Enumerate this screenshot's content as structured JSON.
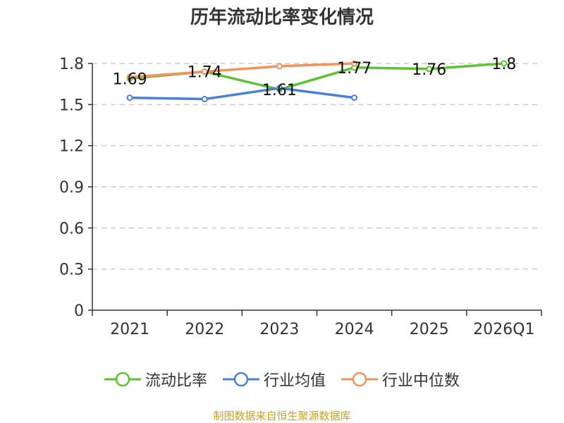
{
  "chart_data": {
    "type": "line",
    "title": "历年流动比率变化情况",
    "categories": [
      "2021",
      "2022",
      "2023",
      "2024",
      "2025",
      "2026Q1"
    ],
    "y_ticks": [
      "0",
      "0.3",
      "0.6",
      "0.9",
      "1.2",
      "1.5",
      "1.8"
    ],
    "ylim": [
      0,
      1.8
    ],
    "grid": true,
    "legend_position": "bottom",
    "series": [
      {
        "name": "流动比率",
        "color": "#5dc431",
        "values": [
          1.69,
          1.74,
          1.61,
          1.77,
          1.76,
          1.8
        ],
        "labels": [
          "1.69",
          "1.74",
          "1.61",
          "1.77",
          "1.76",
          "1.8"
        ]
      },
      {
        "name": "行业均值",
        "color": "#4a7fdb",
        "values": [
          1.55,
          1.54,
          1.62,
          1.55,
          null,
          null
        ]
      },
      {
        "name": "行业中位数",
        "color": "#f2935c",
        "values": [
          1.7,
          1.74,
          1.78,
          1.8,
          null,
          null
        ]
      }
    ]
  },
  "source": "制图数据来自恒生聚源数据库"
}
